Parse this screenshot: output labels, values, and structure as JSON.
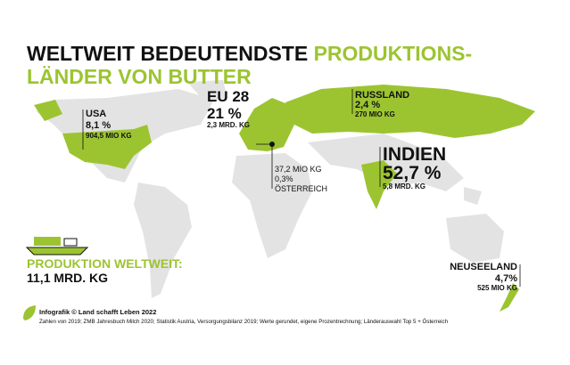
{
  "header": {
    "title_black": "WELTWEIT BEDEUTENDSTE",
    "title_green_1": "PRODUKTIONS-",
    "title_green_2": "LÄNDER VON BUTTER"
  },
  "labels": {
    "usa": {
      "name": "USA",
      "share": "8,1 %",
      "amount": "904,5 MIO KG"
    },
    "eu": {
      "name": "EU 28",
      "share": "21 %",
      "amount": "2,3 MRD. KG"
    },
    "russia": {
      "name": "RUSSLAND",
      "share": "2,4 %",
      "amount": "270 MIO KG"
    },
    "india": {
      "name": "INDIEN",
      "share": "52,7 %",
      "amount": "5,8 MRD. KG"
    },
    "austria": {
      "amount": "37,2 MIO KG",
      "share": "0,3%",
      "name": "ÖSTERREICH"
    },
    "new_zealand": {
      "name": "NEUSEELAND",
      "share": "4,7%",
      "amount": "525 MIO KG"
    }
  },
  "total": {
    "label": "PRODUKTION WELTWEIT:",
    "value": "11,1 MRD. KG"
  },
  "footer": {
    "credit": "Infografik © Land schafft Leben 2022",
    "source": "Zahlen von 2019; ZMB Jahresbuch Milch 2020; Statistik Austria, Versorgungsbilanz 2019; Werte gerundet, eigene Prozentrechnung; Länderauswahl Top 5 + Österreich"
  }
}
